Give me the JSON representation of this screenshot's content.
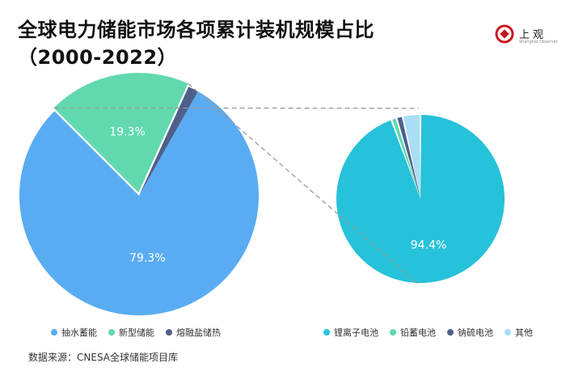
{
  "title_line1": "全球电力储能市场各项累计装机规模占比",
  "title_line2": "（2000-2022）",
  "logo": {
    "name": "上观",
    "subtitle": "Shanghai Observer"
  },
  "source": "数据来源：CNESA全球储能项目库",
  "colors": {
    "accent": "#c8161d"
  },
  "chart_data": [
    {
      "type": "pie",
      "categories": [
        "抽水蓄能",
        "新型储能",
        "熔融盐储热"
      ],
      "values": [
        79.3,
        19.3,
        1.4
      ],
      "data_labels": [
        "79.3%",
        "19.3%",
        ""
      ],
      "colors": [
        "#5aacf2",
        "#61d9ad",
        "#4e5f8c"
      ],
      "exploded": "新型储能",
      "legend_position": "bottom-left"
    },
    {
      "type": "pie",
      "categories": [
        "锂离子电池",
        "铅蓄电池",
        "钠硫电池",
        "其他"
      ],
      "values": [
        94.4,
        1.0,
        1.2,
        3.4
      ],
      "data_labels": [
        "94.4%",
        "",
        "",
        ""
      ],
      "colors": [
        "#26c2d9",
        "#61d9ad",
        "#4e5f8c",
        "#a9def4"
      ],
      "breakdown_of": "新型储能",
      "legend_position": "bottom-right"
    }
  ]
}
